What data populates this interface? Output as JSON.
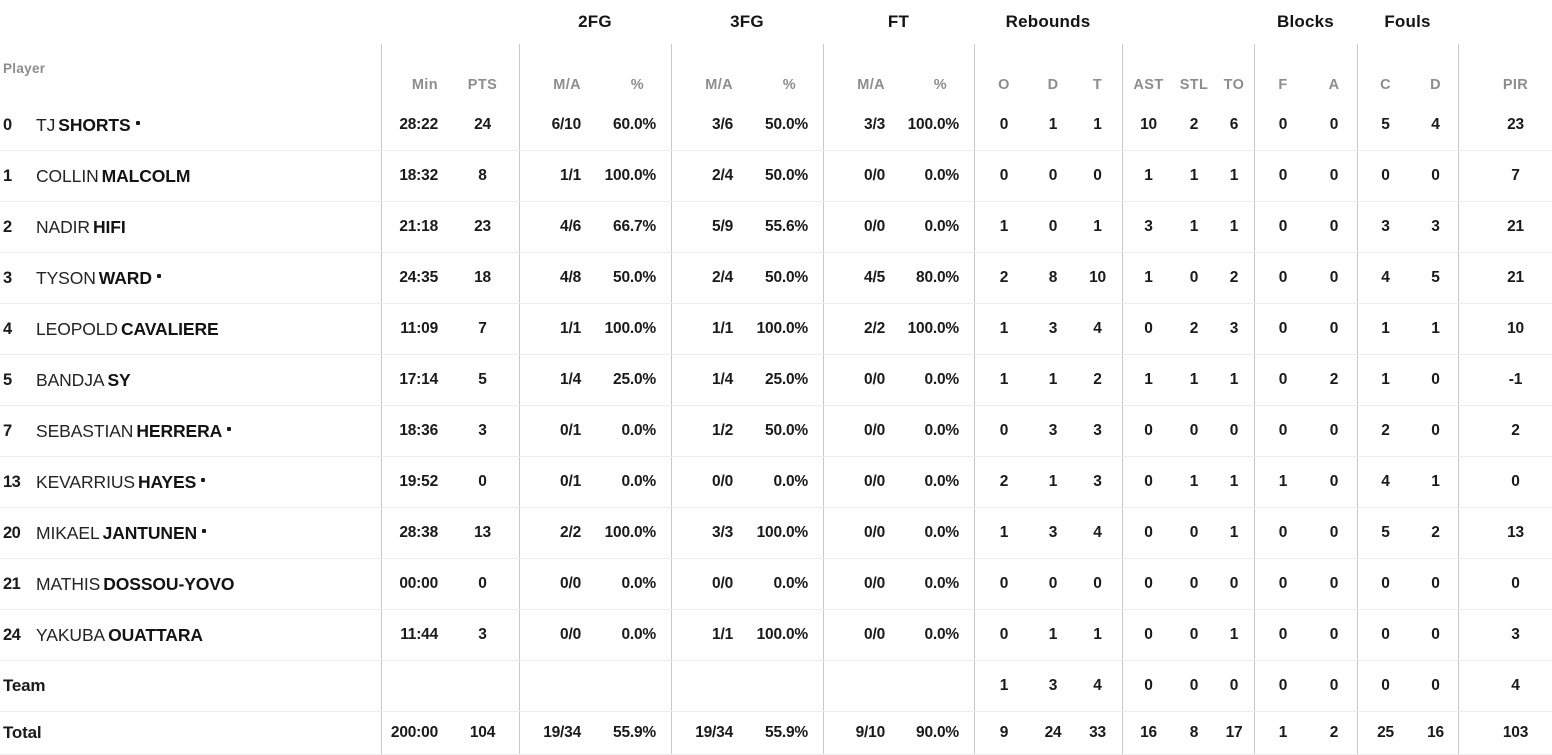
{
  "header": {
    "player_col_label": "Player",
    "groups": [
      "2FG",
      "3FG",
      "FT",
      "Rebounds",
      "Blocks",
      "Fouls"
    ],
    "columns": [
      "Min",
      "PTS",
      "M/A",
      "%",
      "M/A",
      "%",
      "M/A",
      "%",
      "O",
      "D",
      "T",
      "AST",
      "STL",
      "TO",
      "F",
      "A",
      "C",
      "D",
      "PIR"
    ],
    "clipped_next_column": "-"
  },
  "rows": [
    {
      "num": "0",
      "first": "TJ",
      "last": "SHORTS",
      "starter": true,
      "cells": [
        "28:22",
        "24",
        "6/10",
        "60.0%",
        "3/6",
        "50.0%",
        "3/3",
        "100.0%",
        "0",
        "1",
        "1",
        "10",
        "2",
        "6",
        "0",
        "0",
        "5",
        "4",
        "23"
      ]
    },
    {
      "num": "1",
      "first": "COLLIN",
      "last": "MALCOLM",
      "starter": false,
      "cells": [
        "18:32",
        "8",
        "1/1",
        "100.0%",
        "2/4",
        "50.0%",
        "0/0",
        "0.0%",
        "0",
        "0",
        "0",
        "1",
        "1",
        "1",
        "0",
        "0",
        "0",
        "0",
        "7"
      ]
    },
    {
      "num": "2",
      "first": "NADIR",
      "last": "HIFI",
      "starter": false,
      "cells": [
        "21:18",
        "23",
        "4/6",
        "66.7%",
        "5/9",
        "55.6%",
        "0/0",
        "0.0%",
        "1",
        "0",
        "1",
        "3",
        "1",
        "1",
        "0",
        "0",
        "3",
        "3",
        "21"
      ]
    },
    {
      "num": "3",
      "first": "TYSON",
      "last": "WARD",
      "starter": true,
      "cells": [
        "24:35",
        "18",
        "4/8",
        "50.0%",
        "2/4",
        "50.0%",
        "4/5",
        "80.0%",
        "2",
        "8",
        "10",
        "1",
        "0",
        "2",
        "0",
        "0",
        "4",
        "5",
        "21"
      ]
    },
    {
      "num": "4",
      "first": "LEOPOLD",
      "last": "CAVALIERE",
      "starter": false,
      "cells": [
        "11:09",
        "7",
        "1/1",
        "100.0%",
        "1/1",
        "100.0%",
        "2/2",
        "100.0%",
        "1",
        "3",
        "4",
        "0",
        "2",
        "3",
        "0",
        "0",
        "1",
        "1",
        "10"
      ]
    },
    {
      "num": "5",
      "first": "BANDJA",
      "last": "SY",
      "starter": false,
      "cells": [
        "17:14",
        "5",
        "1/4",
        "25.0%",
        "1/4",
        "25.0%",
        "0/0",
        "0.0%",
        "1",
        "1",
        "2",
        "1",
        "1",
        "1",
        "0",
        "2",
        "1",
        "0",
        "-1"
      ]
    },
    {
      "num": "7",
      "first": "SEBASTIAN",
      "last": "HERRERA",
      "starter": true,
      "cells": [
        "18:36",
        "3",
        "0/1",
        "0.0%",
        "1/2",
        "50.0%",
        "0/0",
        "0.0%",
        "0",
        "3",
        "3",
        "0",
        "0",
        "0",
        "0",
        "0",
        "2",
        "0",
        "2"
      ]
    },
    {
      "num": "13",
      "first": "KEVARRIUS",
      "last": "HAYES",
      "starter": true,
      "cells": [
        "19:52",
        "0",
        "0/1",
        "0.0%",
        "0/0",
        "0.0%",
        "0/0",
        "0.0%",
        "2",
        "1",
        "3",
        "0",
        "1",
        "1",
        "1",
        "0",
        "4",
        "1",
        "0"
      ]
    },
    {
      "num": "20",
      "first": "MIKAEL",
      "last": "JANTUNEN",
      "starter": true,
      "cells": [
        "28:38",
        "13",
        "2/2",
        "100.0%",
        "3/3",
        "100.0%",
        "0/0",
        "0.0%",
        "1",
        "3",
        "4",
        "0",
        "0",
        "1",
        "0",
        "0",
        "5",
        "2",
        "13"
      ]
    },
    {
      "num": "21",
      "first": "MATHIS",
      "last": "DOSSOU-YOVO",
      "starter": false,
      "cells": [
        "00:00",
        "0",
        "0/0",
        "0.0%",
        "0/0",
        "0.0%",
        "0/0",
        "0.0%",
        "0",
        "0",
        "0",
        "0",
        "0",
        "0",
        "0",
        "0",
        "0",
        "0",
        "0"
      ]
    },
    {
      "num": "24",
      "first": "YAKUBA",
      "last": "OUATTARA",
      "starter": false,
      "cells": [
        "11:44",
        "3",
        "0/0",
        "0.0%",
        "1/1",
        "100.0%",
        "0/0",
        "0.0%",
        "0",
        "1",
        "1",
        "0",
        "0",
        "1",
        "0",
        "0",
        "0",
        "0",
        "3"
      ]
    },
    {
      "label": "Team",
      "cells": [
        "",
        "",
        "",
        "",
        "",
        "",
        "",
        "",
        "1",
        "3",
        "4",
        "0",
        "0",
        "0",
        "0",
        "0",
        "0",
        "0",
        "4"
      ]
    },
    {
      "label": "Total",
      "cells": [
        "200:00",
        "104",
        "19/34",
        "55.9%",
        "19/34",
        "55.9%",
        "9/10",
        "90.0%",
        "9",
        "24",
        "33",
        "16",
        "8",
        "17",
        "1",
        "2",
        "25",
        "16",
        "103"
      ]
    }
  ]
}
